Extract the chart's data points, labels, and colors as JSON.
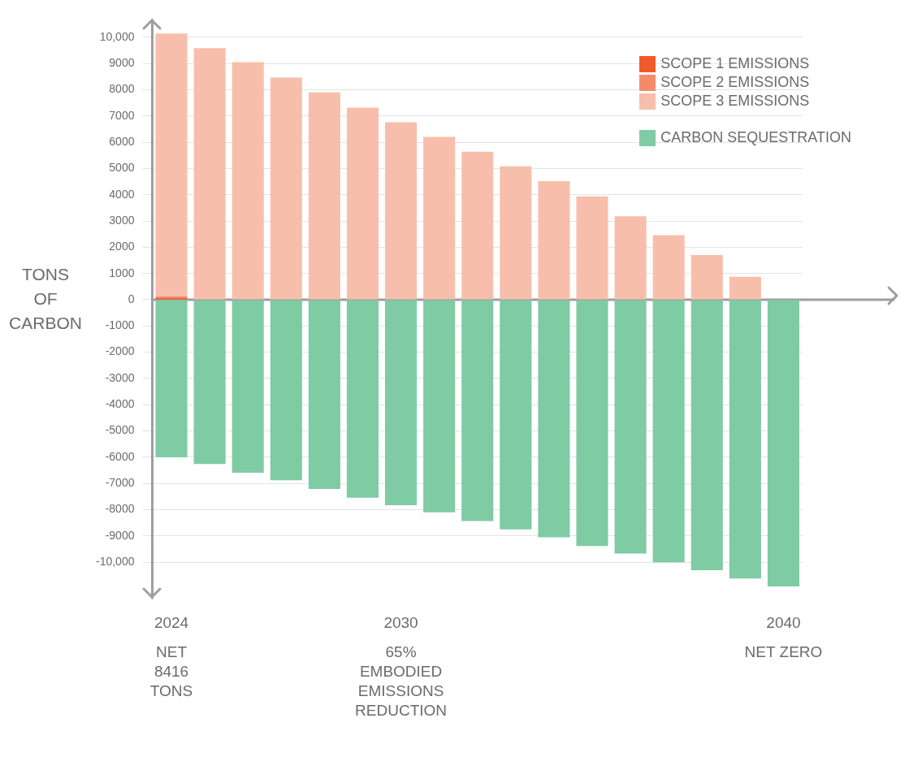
{
  "chart_data": {
    "type": "bar",
    "stacked": true,
    "ylabel": "TONS OF CARBON",
    "categories": [
      "2024",
      null,
      null,
      null,
      null,
      null,
      "2030",
      null,
      null,
      null,
      null,
      null,
      null,
      null,
      null,
      null,
      "2040"
    ],
    "series": [
      {
        "name": "SCOPE 1 EMISSIONS",
        "color": "#f15a2b",
        "values": [
          70,
          0,
          0,
          0,
          0,
          0,
          0,
          0,
          0,
          0,
          0,
          0,
          0,
          0,
          0,
          0,
          0
        ]
      },
      {
        "name": "SCOPE 2 EMISSIONS",
        "color": "#f58b6b",
        "values": [
          60,
          0,
          0,
          0,
          0,
          0,
          0,
          0,
          0,
          0,
          0,
          0,
          0,
          0,
          0,
          0,
          0
        ]
      },
      {
        "name": "SCOPE 3 EMISSIONS",
        "color": "#f7bfab",
        "values": [
          10010,
          9580,
          9050,
          8460,
          7900,
          7320,
          6760,
          6200,
          5640,
          5080,
          4520,
          3940,
          3180,
          2460,
          1700,
          870,
          0
        ]
      },
      {
        "name": "CARBON SEQUESTRATION",
        "color": "#7fcba3",
        "values": [
          -6000,
          -6260,
          -6590,
          -6880,
          -7210,
          -7540,
          -7830,
          -8100,
          -8430,
          -8750,
          -9050,
          -9380,
          -9670,
          -10000,
          -10300,
          -10620,
          -10920
        ]
      }
    ],
    "ylim": [
      -11300,
      10600
    ],
    "yticks": [
      {
        "value": -10000,
        "label": "-10,000"
      },
      -9000,
      -8000,
      -7000,
      -6000,
      -5000,
      -4000,
      -3000,
      -2000,
      -1000,
      0,
      1000,
      2000,
      3000,
      4000,
      5000,
      6000,
      7000,
      8000,
      9000,
      {
        "value": 10000,
        "label": "10,000"
      }
    ],
    "grid": "y",
    "legend": "top right",
    "annotations": [
      "NET\n8416\nTONS",
      "65%\nEMBODIED\nEMISSIONS\nREDUCTION",
      "NET ZERO"
    ]
  }
}
